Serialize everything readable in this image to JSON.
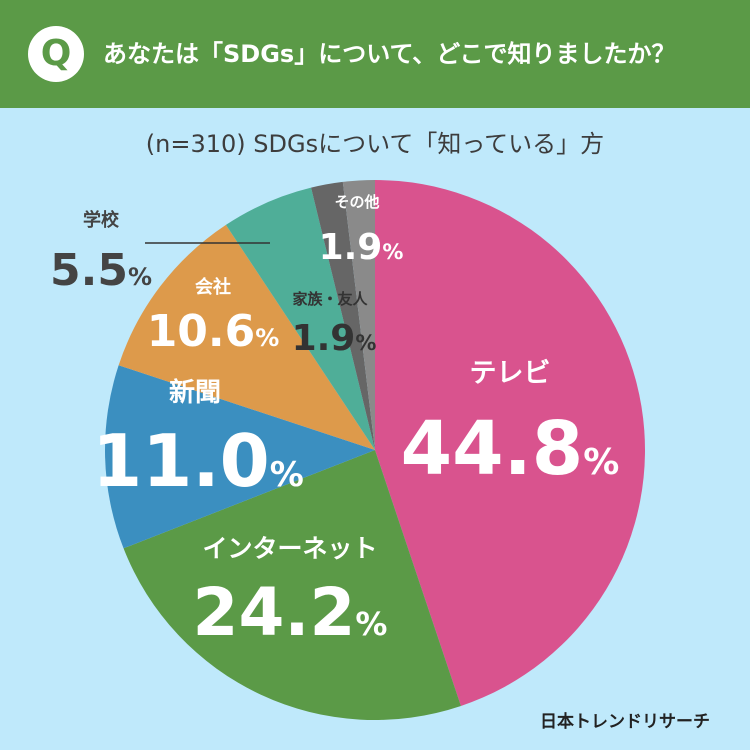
{
  "header": {
    "badge": "Q",
    "question": "あなたは「SDGs」について、どこで知りましたか？"
  },
  "subtitle": "(n=310) SDGsについて「知っている」方",
  "brand": "日本トレンドリサーチ",
  "colors": {
    "header_bg": "#5b9a47",
    "background": "#bfe9fb"
  },
  "chart_data": {
    "type": "pie",
    "title": "あなたは「SDGs」について、どこで知りましたか？",
    "subtitle": "(n=310) SDGsについて「知っている」方",
    "unit": "%",
    "start": "12 o'clock",
    "direction": "clockwise",
    "slices": [
      {
        "label": "テレビ",
        "value": 44.8,
        "value_text": "44.8",
        "color": "#d9538e"
      },
      {
        "label": "インターネット",
        "value": 24.2,
        "value_text": "24.2",
        "color": "#5b9a47"
      },
      {
        "label": "新聞",
        "value": 11.0,
        "value_text": "11.0",
        "color": "#3b8fc0"
      },
      {
        "label": "会社",
        "value": 10.6,
        "value_text": "10.6",
        "color": "#dd9a4b"
      },
      {
        "label": "学校",
        "value": 5.5,
        "value_text": "5.5",
        "color": "#4fae98"
      },
      {
        "label": "家族・友人",
        "value": 1.9,
        "value_text": "1.9",
        "color": "#666666"
      },
      {
        "label": "その他",
        "value": 1.9,
        "value_text": "1.9",
        "color": "#8a8a8a"
      }
    ]
  }
}
